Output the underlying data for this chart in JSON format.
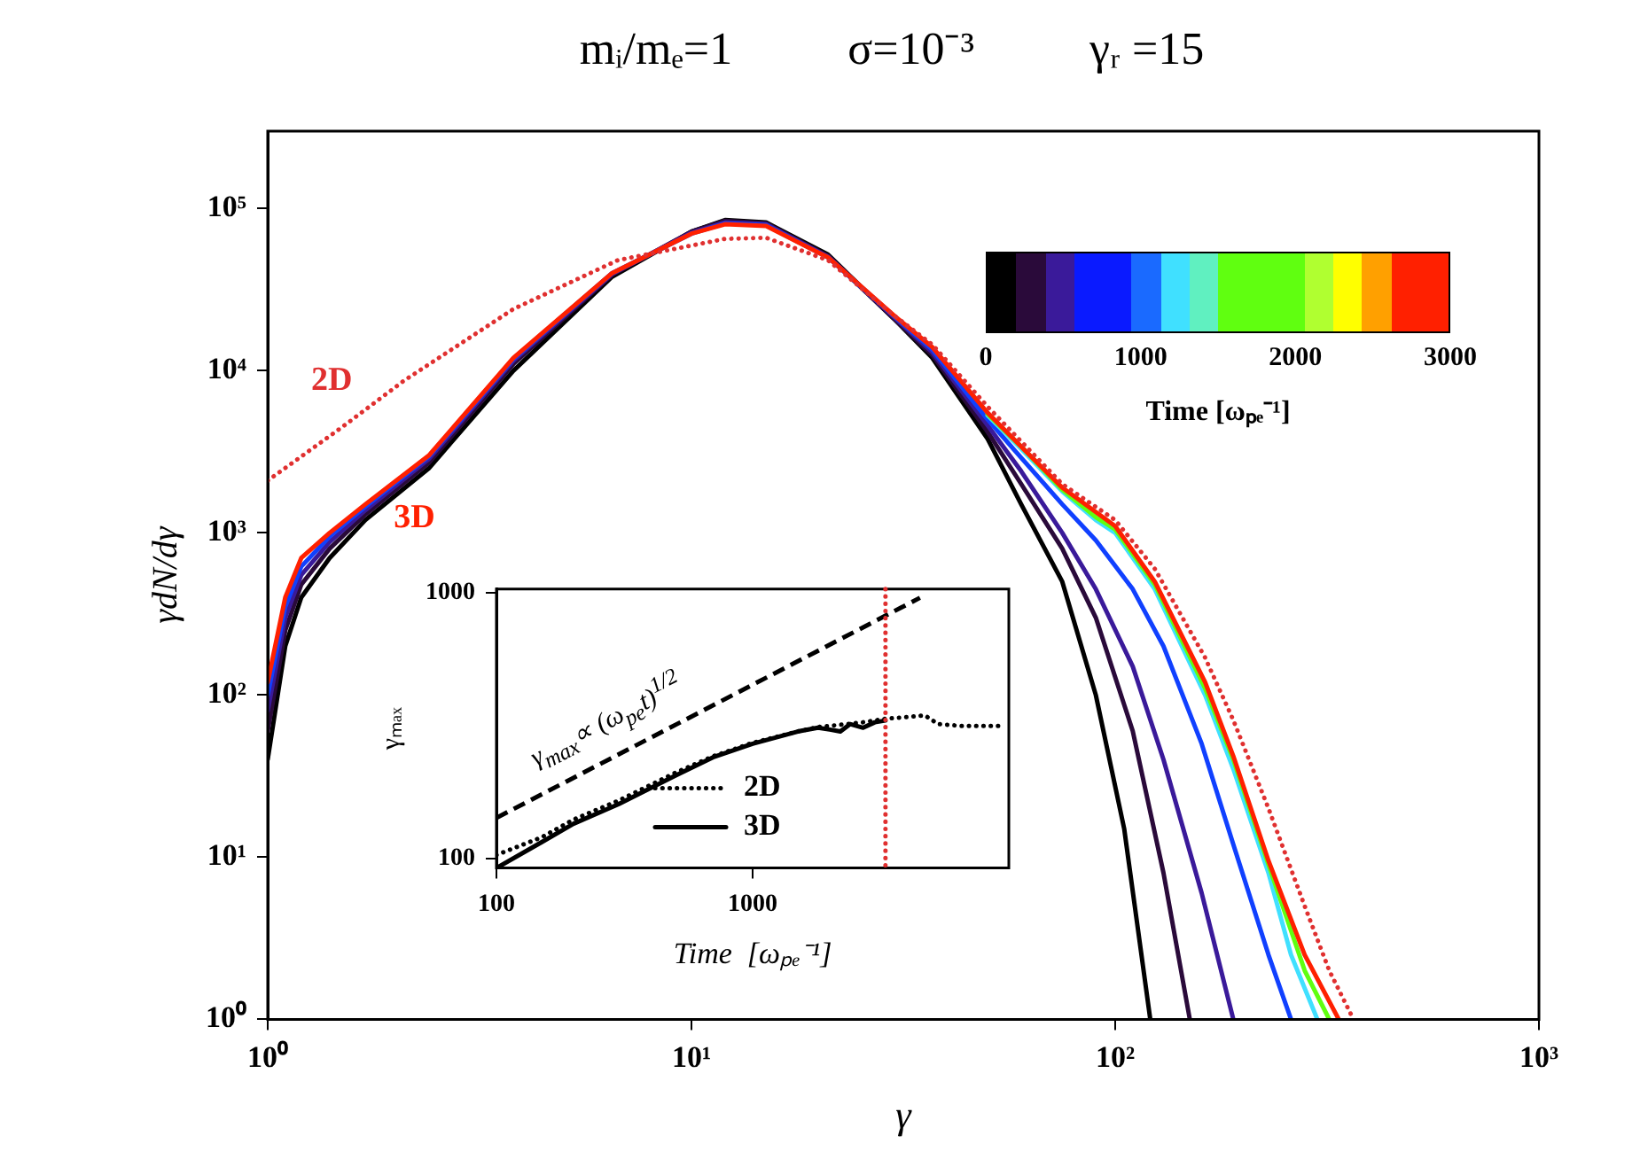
{
  "chart_data": [
    {
      "type": "line",
      "title": "mᵢ/mₑ=1          σ=10⁻³          γᵣ =15",
      "xlabel": "γ",
      "ylabel": "γdN/dγ",
      "log": "xy",
      "xlim": [
        1,
        1000
      ],
      "ylim": [
        1,
        300000
      ],
      "xticks": [
        {
          "value": 1,
          "label": "10⁰"
        },
        {
          "value": 10,
          "label": "10¹"
        },
        {
          "value": 100,
          "label": "10²"
        },
        {
          "value": 1000,
          "label": "10³"
        }
      ],
      "yticks": [
        {
          "value": 1,
          "label": "10⁰"
        },
        {
          "value": 10,
          "label": "10¹"
        },
        {
          "value": 100,
          "label": "10²"
        },
        {
          "value": 1000,
          "label": "10³"
        },
        {
          "value": 10000,
          "label": "10⁴"
        },
        {
          "value": 100000,
          "label": "10⁵"
        }
      ],
      "clabel": "Time [ωₚₑ⁻¹]",
      "annotations": [
        "0",
        "1000",
        "2000",
        "3000"
      ],
      "series": [
        {
          "color": "#000000",
          "x": [
            1,
            1.1,
            1.2,
            1.4,
            1.7,
            2.4,
            3.8,
            6.5,
            10,
            12,
            15,
            21,
            30,
            37,
            50,
            60,
            75,
            90,
            105,
            121
          ],
          "values": [
            40,
            200,
            400,
            700,
            1200,
            2500,
            10000,
            38000,
            72000,
            85000,
            82000,
            52000,
            21000,
            12000,
            3800,
            1500,
            500,
            100,
            15,
            1
          ]
        },
        {
          "color": "#2a0a3a",
          "x": [
            1,
            1.1,
            1.2,
            1.4,
            1.7,
            2.4,
            3.8,
            6.5,
            10,
            12,
            15,
            21,
            30,
            37,
            50,
            60,
            75,
            90,
            110,
            130,
            150
          ],
          "values": [
            60,
            250,
            480,
            800,
            1300,
            2700,
            11000,
            39000,
            72000,
            84000,
            81000,
            51000,
            21000,
            12500,
            4200,
            2000,
            800,
            300,
            60,
            8,
            1
          ]
        },
        {
          "color": "#3a1a9a",
          "x": [
            1,
            1.1,
            1.2,
            1.4,
            1.7,
            2.4,
            3.8,
            6.5,
            10,
            12,
            15,
            21,
            30,
            37,
            50,
            60,
            75,
            90,
            110,
            130,
            160,
            190
          ],
          "values": [
            80,
            300,
            550,
            880,
            1380,
            2850,
            11500,
            39500,
            71000,
            82000,
            80000,
            50500,
            21500,
            13000,
            4600,
            2400,
            1000,
            450,
            150,
            40,
            6,
            1
          ]
        },
        {
          "color": "#1040ff",
          "x": [
            1,
            1.1,
            1.2,
            1.4,
            1.7,
            2.4,
            3.8,
            6.5,
            10,
            12,
            15,
            21,
            30,
            37,
            50,
            60,
            75,
            90,
            110,
            130,
            160,
            190,
            230,
            260
          ],
          "values": [
            100,
            350,
            620,
            950,
            1450,
            2950,
            11800,
            40000,
            70000,
            81000,
            79000,
            50000,
            21800,
            13500,
            5000,
            2900,
            1500,
            900,
            450,
            200,
            50,
            12,
            2.5,
            1
          ]
        },
        {
          "color": "#40e0ff",
          "x": [
            50,
            60,
            75,
            90,
            100,
            124,
            163,
            190,
            230,
            260,
            300
          ],
          "values": [
            5300,
            3300,
            1800,
            1200,
            1000,
            450,
            100,
            35,
            8,
            2.5,
            1
          ]
        },
        {
          "color": "#60ff10",
          "x": [
            50,
            60,
            75,
            90,
            100,
            124,
            163,
            190,
            230,
            280,
            320
          ],
          "values": [
            5400,
            3400,
            1850,
            1250,
            1050,
            480,
            110,
            40,
            9,
            2,
            1
          ]
        },
        {
          "name": "3D",
          "color": "#ff2000",
          "x": [
            1,
            1.1,
            1.2,
            1.4,
            1.7,
            2.4,
            3.8,
            6.5,
            10,
            12,
            15,
            21,
            30,
            37,
            50,
            60,
            75,
            100,
            124,
            163,
            190,
            230,
            280,
            337
          ],
          "values": [
            120,
            400,
            700,
            1000,
            1500,
            3000,
            12000,
            40000,
            70000,
            80000,
            78000,
            50000,
            22000,
            14000,
            5500,
            3400,
            1900,
            1100,
            500,
            120,
            42,
            9.5,
            2.5,
            1
          ]
        },
        {
          "name": "2D",
          "color": "#e03030",
          "line_style": "dotted",
          "x": [
            1,
            1.5,
            2.1,
            3.8,
            6.7,
            12,
            15,
            21,
            30,
            37,
            50,
            75,
            100,
            124,
            163,
            190,
            230,
            280,
            320,
            365
          ],
          "values": [
            2100,
            4500,
            8700,
            24000,
            48000,
            65000,
            66000,
            48000,
            22000,
            14500,
            6000,
            2000,
            1200,
            600,
            170,
            70,
            20,
            5,
            2,
            1
          ]
        }
      ]
    },
    {
      "type": "line",
      "xlabel": "Time  [ωₚₑ⁻¹]",
      "ylabel": "γₘₐₓ",
      "log": "xy",
      "xlim": [
        100,
        10000
      ],
      "ylim": [
        92,
        1030
      ],
      "xticks": [
        100,
        1000
      ],
      "yticks": [
        100,
        1000
      ],
      "legend": "bottom",
      "ref_lines": [
        {
          "axis": "x",
          "value": 3300,
          "color": "#e03030",
          "line_style": "dotted"
        }
      ],
      "annotations": [
        "γ$_{max}$∝ (ω$_{pe}$t)$^{1/2}$"
      ],
      "series": [
        {
          "color": "#000000",
          "line_style": "dashed",
          "x": [
            100,
            4500
          ],
          "values": [
            142,
            955
          ]
        },
        {
          "name": "2D",
          "color": "#000000",
          "line_style": "dotted",
          "x": [
            100,
            150,
            200,
            300,
            500,
            700,
            1000,
            1500,
            1800,
            2200,
            2700,
            3300,
            4000,
            4700,
            5300,
            6500,
            9300
          ],
          "values": [
            103,
            120,
            140,
            165,
            210,
            242,
            272,
            300,
            312,
            318,
            325,
            335,
            340,
            345,
            320,
            315,
            315
          ]
        },
        {
          "name": "3D",
          "color": "#000000",
          "line_style": "solid",
          "x": [
            100,
            150,
            200,
            300,
            500,
            700,
            1000,
            1500,
            1800,
            2000,
            2200,
            2400,
            2700,
            3000,
            3300
          ],
          "values": [
            92,
            115,
            135,
            160,
            205,
            240,
            270,
            300,
            310,
            305,
            300,
            320,
            310,
            325,
            330
          ]
        }
      ]
    }
  ]
}
